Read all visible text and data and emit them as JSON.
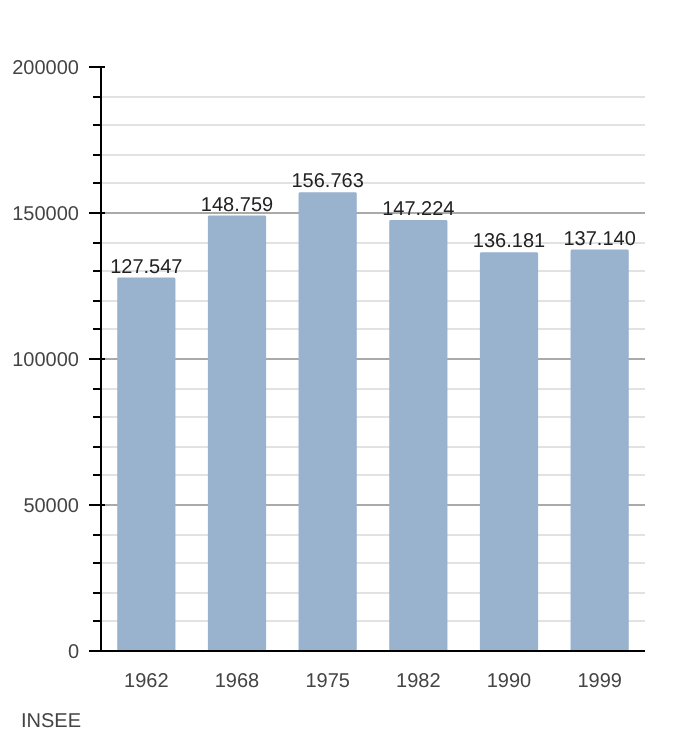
{
  "chart_data": {
    "type": "bar",
    "categories": [
      "1962",
      "1968",
      "1975",
      "1982",
      "1990",
      "1999"
    ],
    "values": [
      127547,
      148759,
      156763,
      147224,
      136181,
      137140
    ],
    "value_labels": [
      "127.547",
      "148.759",
      "156.763",
      "147.224",
      "136.181",
      "137.140"
    ],
    "color": "#99b3cf",
    "ylim": [
      0,
      200000
    ],
    "yticks": [
      0,
      50000,
      100000,
      150000,
      200000
    ],
    "grid": "y",
    "annotations": [
      "INSEE"
    ]
  }
}
